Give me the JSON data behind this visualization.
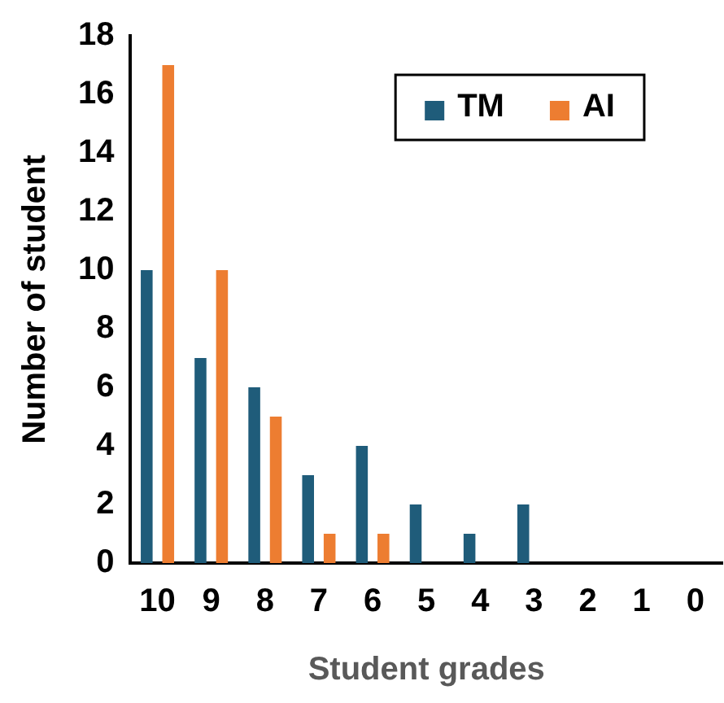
{
  "chart_data": {
    "type": "bar",
    "xlabel": "Student grades",
    "ylabel": "Number of student",
    "categories": [
      "10",
      "9",
      "8",
      "7",
      "6",
      "5",
      "4",
      "3",
      "2",
      "1",
      "0"
    ],
    "series": [
      {
        "name": "TM",
        "color": "#1f5c7a",
        "values": [
          10,
          7,
          6,
          3,
          4,
          2,
          1,
          2,
          0,
          0,
          0
        ]
      },
      {
        "name": "AI",
        "color": "#ed7d31",
        "values": [
          17,
          10,
          5,
          1,
          1,
          0,
          0,
          0,
          0,
          0,
          0
        ]
      }
    ],
    "ylim": [
      0,
      18
    ],
    "yticks": [
      0,
      2,
      4,
      6,
      8,
      10,
      12,
      14,
      16,
      18
    ],
    "grid": false,
    "legend": "top right"
  }
}
